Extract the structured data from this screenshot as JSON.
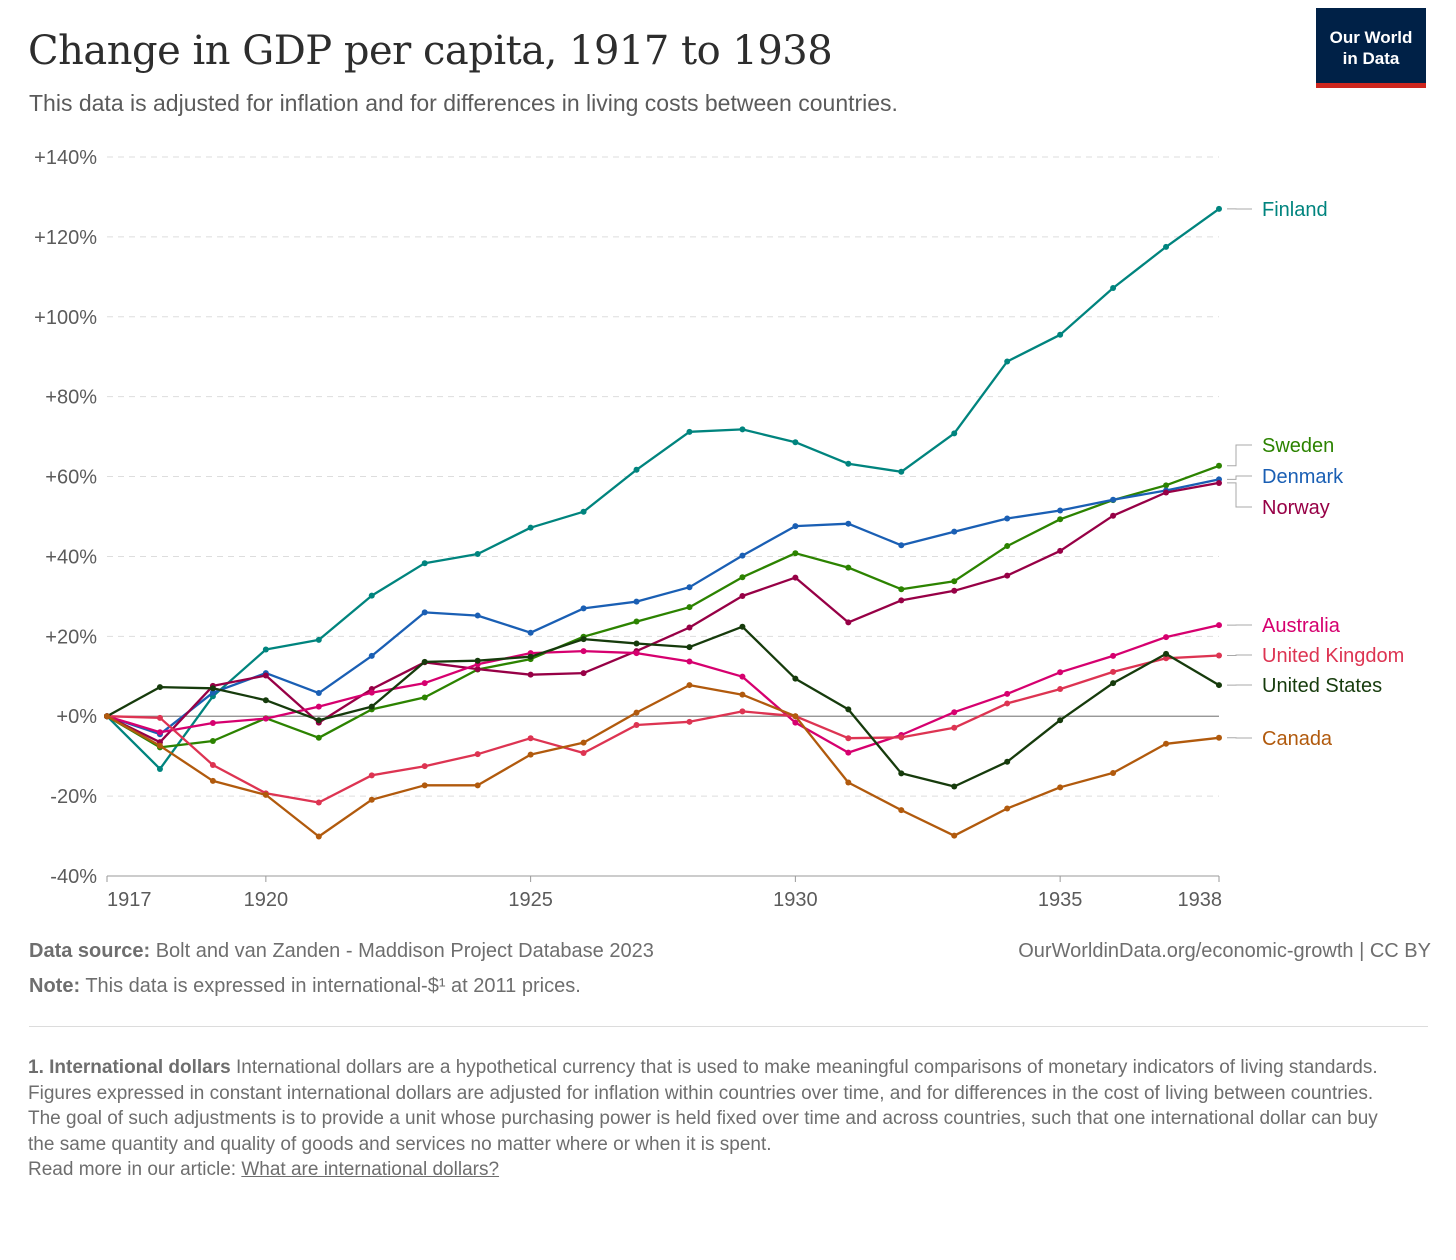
{
  "header": {
    "title": "Change in GDP per capita, 1917 to 1938",
    "subtitle": "This data is adjusted for inflation and for differences in living costs between countries.",
    "logo_line1": "Our World",
    "logo_line2": "in Data"
  },
  "footer": {
    "source_label": "Data source:",
    "source_text": "Bolt and van Zanden - Maddison Project Database 2023",
    "note_label": "Note:",
    "note_text": "This data is expressed in international-$¹ at 2011 prices.",
    "credit": "OurWorldinData.org/economic-growth  | CC BY"
  },
  "footnote": {
    "heading": "1. International dollars",
    "para1": "International dollars are a hypothetical currency that is used to make meaningful comparisons of monetary indicators of living standards.",
    "para2": "Figures expressed in constant international dollars are adjusted for inflation within countries over time, and for differences in the cost of living between countries.",
    "para3": "The goal of such adjustments is to provide a unit whose purchasing power is held fixed over time and across countries, such that one international dollar can buy the same quantity and quality of goods and services no matter where or when it is spent.",
    "read_more_prefix": "Read more in our article: ",
    "read_more_link": "What are international dollars?"
  },
  "colors": {
    "grid": "#dddddd",
    "zero_line": "#8a8a8a",
    "axis_text": "#5b5b5b",
    "logo_bg": "#002147",
    "logo_bar": "#ce261e"
  },
  "chart_data": {
    "type": "line",
    "title": "Change in GDP per capita, 1917 to 1938",
    "xlabel": "",
    "ylabel": "",
    "xlim": [
      1917,
      1938
    ],
    "ylim": [
      -40,
      140
    ],
    "x": [
      1917,
      1918,
      1919,
      1920,
      1921,
      1922,
      1923,
      1924,
      1925,
      1926,
      1927,
      1928,
      1929,
      1930,
      1931,
      1932,
      1933,
      1934,
      1935,
      1936,
      1937,
      1938
    ],
    "x_ticks": [
      "1917",
      "1920",
      "1925",
      "1930",
      "1935",
      "1938"
    ],
    "y_ticks": [
      "+140%",
      "+120%",
      "+100%",
      "+80%",
      "+60%",
      "+40%",
      "+20%",
      "+0%",
      "-20%",
      "-40%"
    ],
    "grid": true,
    "legend": "right, inline labels at line ends",
    "series": [
      {
        "name": "Finland",
        "color": "#00847e",
        "values": [
          0,
          -13.2,
          5,
          16.7,
          19.1,
          30.2,
          38.3,
          40.6,
          47.2,
          51.2,
          61.7,
          71.2,
          71.8,
          68.6,
          63.2,
          61.2,
          70.8,
          88.8,
          95.5,
          107.2,
          117.5,
          127
        ]
      },
      {
        "name": "Sweden",
        "color": "#2c8300",
        "values": [
          0,
          -7.8,
          -6.2,
          -0.5,
          -5.4,
          1.7,
          4.7,
          11.7,
          14.3,
          19.9,
          23.7,
          27.3,
          34.8,
          40.8,
          37.2,
          31.8,
          33.8,
          42.6,
          49.3,
          54.1,
          57.8,
          62.7
        ]
      },
      {
        "name": "Denmark",
        "color": "#1a5fb4",
        "values": [
          0,
          -4.5,
          5.9,
          10.8,
          5.8,
          15.1,
          26,
          25.2,
          20.9,
          27,
          28.7,
          32.3,
          40.2,
          47.6,
          48.2,
          42.8,
          46.2,
          49.5,
          51.5,
          54.2,
          56.5,
          59.3
        ]
      },
      {
        "name": "Norway",
        "color": "#970046",
        "values": [
          0,
          -6.5,
          7.6,
          10.2,
          -1.6,
          6.8,
          13.5,
          11.8,
          10.4,
          10.8,
          16.3,
          22.2,
          30.1,
          34.7,
          23.5,
          29,
          31.4,
          35.2,
          41.4,
          50.2,
          56,
          58.4
        ]
      },
      {
        "name": "Australia",
        "color": "#d6006f",
        "values": [
          0,
          -4,
          -1.7,
          -0.6,
          2.4,
          5.9,
          8.3,
          13,
          15.8,
          16.3,
          15.8,
          13.7,
          9.9,
          -1.6,
          -9.1,
          -4.7,
          1,
          5.6,
          11,
          15.1,
          19.8,
          22.8
        ]
      },
      {
        "name": "United Kingdom",
        "color": "#dd3452",
        "values": [
          0,
          -0.4,
          -12.2,
          -19.3,
          -21.6,
          -14.8,
          -12.5,
          -9.5,
          -5.5,
          -9.2,
          -2.2,
          -1.4,
          1.2,
          0,
          -5.5,
          -5.3,
          -2.9,
          3.2,
          6.8,
          11.1,
          14.5,
          15.2
        ]
      },
      {
        "name": "United States",
        "color": "#163b0c",
        "values": [
          0,
          7.3,
          7,
          4,
          -1,
          2.4,
          13.6,
          13.9,
          14.9,
          19.3,
          18.2,
          17.3,
          22.4,
          9.4,
          1.7,
          -14.3,
          -17.6,
          -11.4,
          -1,
          8.3,
          15.6,
          7.8
        ]
      },
      {
        "name": "Canada",
        "color": "#b15a0d",
        "values": [
          0,
          -7.4,
          -16.2,
          -19.7,
          -30.1,
          -20.9,
          -17.3,
          -17.3,
          -9.6,
          -6.6,
          0.9,
          7.8,
          5.4,
          0,
          -16.6,
          -23.5,
          -29.9,
          -23.1,
          -17.8,
          -14.2,
          -6.9,
          -5.4
        ]
      }
    ]
  }
}
